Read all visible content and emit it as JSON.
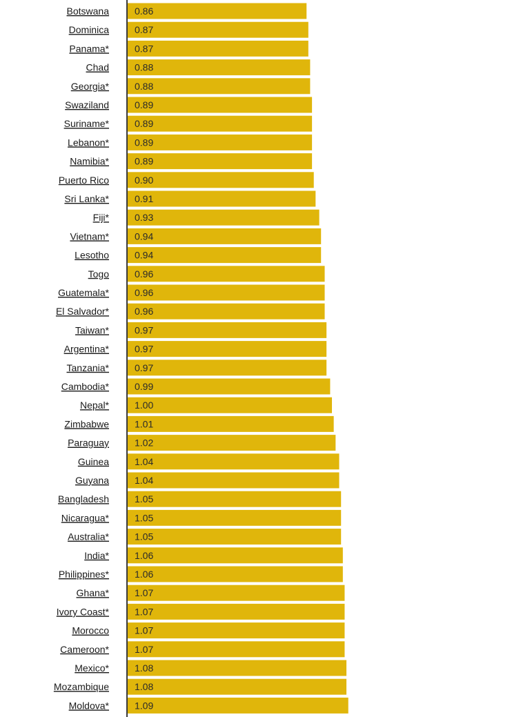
{
  "chart_data": {
    "type": "bar",
    "orientation": "horizontal",
    "title": "",
    "xlabel": "",
    "ylabel": "",
    "bar_color": "#e0b60b",
    "axis_color": "#3a3a3a",
    "categories": [
      "Botswana",
      "Dominica",
      "Panama*",
      "Chad",
      "Georgia*",
      "Swaziland",
      "Suriname*",
      "Lebanon*",
      "Namibia*",
      "Puerto Rico",
      "Sri Lanka*",
      "Fiji*",
      "Vietnam*",
      "Lesotho",
      "Togo",
      "Guatemala*",
      "El Salvador*",
      "Taiwan*",
      "Argentina*",
      "Tanzania*",
      "Cambodia*",
      "Nepal*",
      "Zimbabwe",
      "Paraguay",
      "Guinea",
      "Guyana",
      "Bangladesh",
      "Nicaragua*",
      "Australia*",
      "India*",
      "Philippines*",
      "Ghana*",
      "Ivory Coast*",
      "Morocco",
      "Cameroon*",
      "Mexico*",
      "Mozambique",
      "Moldova*"
    ],
    "values": [
      0.86,
      0.87,
      0.87,
      0.88,
      0.88,
      0.89,
      0.89,
      0.89,
      0.89,
      0.9,
      0.91,
      0.93,
      0.94,
      0.94,
      0.96,
      0.96,
      0.96,
      0.97,
      0.97,
      0.97,
      0.99,
      1.0,
      1.01,
      1.02,
      1.04,
      1.04,
      1.05,
      1.05,
      1.05,
      1.06,
      1.06,
      1.07,
      1.07,
      1.07,
      1.07,
      1.08,
      1.08,
      1.09
    ],
    "value_labels": [
      "0.86",
      "0.87",
      "0.87",
      "0.88",
      "0.88",
      "0.89",
      "0.89",
      "0.89",
      "0.89",
      "0.90",
      "0.91",
      "0.93",
      "0.94",
      "0.94",
      "0.96",
      "0.96",
      "0.96",
      "0.97",
      "0.97",
      "0.97",
      "0.99",
      "1.00",
      "1.01",
      "1.02",
      "1.04",
      "1.04",
      "1.05",
      "1.05",
      "1.05",
      "1.06",
      "1.06",
      "1.07",
      "1.07",
      "1.07",
      "1.07",
      "1.08",
      "1.08",
      "1.09"
    ]
  }
}
